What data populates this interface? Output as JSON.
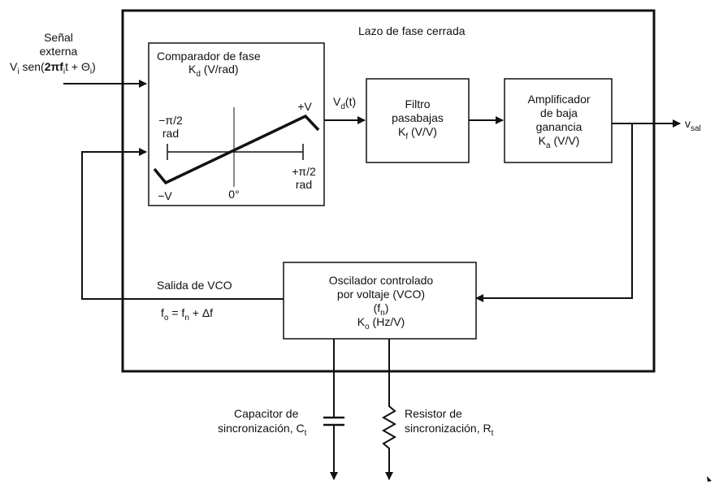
{
  "outer_title": "Lazo de fase cerrada",
  "input": {
    "line1": "Señal",
    "line2": "externa",
    "V": "V",
    "V_sub": "i",
    "sen": " sen(",
    "two_pi_f": "2πf",
    "f_sub": "i",
    "t_plus": "t + Θ",
    "theta_sub": "i",
    "close": ")"
  },
  "comparator": {
    "title": "Comparador de fase",
    "K": "K",
    "K_sub": "d",
    "K_unit": " (V/rad)",
    "neg_pi": "−π/2",
    "rad1": "rad",
    "pos_v": "+V",
    "neg_v": "−V",
    "zero": "0°",
    "pos_pi": "+π/2",
    "rad2": "rad"
  },
  "vd": {
    "V": "V",
    "sub": "d",
    "rest": "(t)"
  },
  "filter": {
    "line1": "Filtro",
    "line2": "pasabajas",
    "K": "K",
    "K_sub": "f",
    "K_unit": " (V/V)"
  },
  "amplifier": {
    "line1": "Amplificador",
    "line2": "de baja",
    "line3": "ganancia",
    "K": "K",
    "K_sub": "a",
    "K_unit": " (V/V)"
  },
  "output": {
    "v": "v",
    "sub": "sal"
  },
  "vco": {
    "line1": "Oscilador controlado",
    "line2": "por voltaje (VCO)",
    "fn_open": "(f",
    "fn_sub": "n",
    "fn_close": ")",
    "K": "K",
    "K_sub": "o",
    "K_unit": " (Hz/V)"
  },
  "vco_out": {
    "label": "Salida de VCO",
    "f": "f",
    "f_sub": "o",
    "eq": " = f",
    "n_sub": "n",
    "rest": " + Δf"
  },
  "capacitor": {
    "line1": "Capacitor de",
    "line2": "sincronización, C",
    "sub": "t"
  },
  "resistor": {
    "line1": "Resistor de",
    "line2": "sincronización, R",
    "sub": "t"
  }
}
